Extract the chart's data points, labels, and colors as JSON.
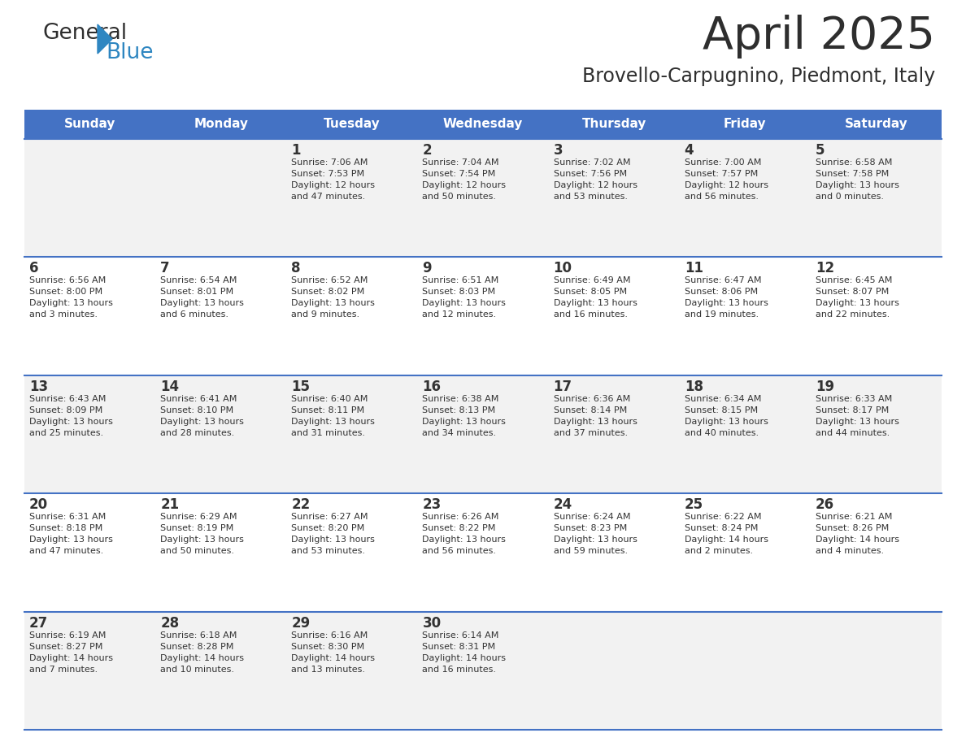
{
  "title": "April 2025",
  "subtitle": "Brovello-Carpugnino, Piedmont, Italy",
  "header_color": "#4472C4",
  "header_text_color": "#FFFFFF",
  "cell_bg_even": "#F2F2F2",
  "cell_bg_odd": "#FFFFFF",
  "day_headers": [
    "Sunday",
    "Monday",
    "Tuesday",
    "Wednesday",
    "Thursday",
    "Friday",
    "Saturday"
  ],
  "title_color": "#2E2E2E",
  "subtitle_color": "#2E2E2E",
  "divider_color": "#4472C4",
  "text_color": "#333333",
  "calendar": [
    [
      {
        "day": "",
        "info": ""
      },
      {
        "day": "",
        "info": ""
      },
      {
        "day": "1",
        "info": "Sunrise: 7:06 AM\nSunset: 7:53 PM\nDaylight: 12 hours\nand 47 minutes."
      },
      {
        "day": "2",
        "info": "Sunrise: 7:04 AM\nSunset: 7:54 PM\nDaylight: 12 hours\nand 50 minutes."
      },
      {
        "day": "3",
        "info": "Sunrise: 7:02 AM\nSunset: 7:56 PM\nDaylight: 12 hours\nand 53 minutes."
      },
      {
        "day": "4",
        "info": "Sunrise: 7:00 AM\nSunset: 7:57 PM\nDaylight: 12 hours\nand 56 minutes."
      },
      {
        "day": "5",
        "info": "Sunrise: 6:58 AM\nSunset: 7:58 PM\nDaylight: 13 hours\nand 0 minutes."
      }
    ],
    [
      {
        "day": "6",
        "info": "Sunrise: 6:56 AM\nSunset: 8:00 PM\nDaylight: 13 hours\nand 3 minutes."
      },
      {
        "day": "7",
        "info": "Sunrise: 6:54 AM\nSunset: 8:01 PM\nDaylight: 13 hours\nand 6 minutes."
      },
      {
        "day": "8",
        "info": "Sunrise: 6:52 AM\nSunset: 8:02 PM\nDaylight: 13 hours\nand 9 minutes."
      },
      {
        "day": "9",
        "info": "Sunrise: 6:51 AM\nSunset: 8:03 PM\nDaylight: 13 hours\nand 12 minutes."
      },
      {
        "day": "10",
        "info": "Sunrise: 6:49 AM\nSunset: 8:05 PM\nDaylight: 13 hours\nand 16 minutes."
      },
      {
        "day": "11",
        "info": "Sunrise: 6:47 AM\nSunset: 8:06 PM\nDaylight: 13 hours\nand 19 minutes."
      },
      {
        "day": "12",
        "info": "Sunrise: 6:45 AM\nSunset: 8:07 PM\nDaylight: 13 hours\nand 22 minutes."
      }
    ],
    [
      {
        "day": "13",
        "info": "Sunrise: 6:43 AM\nSunset: 8:09 PM\nDaylight: 13 hours\nand 25 minutes."
      },
      {
        "day": "14",
        "info": "Sunrise: 6:41 AM\nSunset: 8:10 PM\nDaylight: 13 hours\nand 28 minutes."
      },
      {
        "day": "15",
        "info": "Sunrise: 6:40 AM\nSunset: 8:11 PM\nDaylight: 13 hours\nand 31 minutes."
      },
      {
        "day": "16",
        "info": "Sunrise: 6:38 AM\nSunset: 8:13 PM\nDaylight: 13 hours\nand 34 minutes."
      },
      {
        "day": "17",
        "info": "Sunrise: 6:36 AM\nSunset: 8:14 PM\nDaylight: 13 hours\nand 37 minutes."
      },
      {
        "day": "18",
        "info": "Sunrise: 6:34 AM\nSunset: 8:15 PM\nDaylight: 13 hours\nand 40 minutes."
      },
      {
        "day": "19",
        "info": "Sunrise: 6:33 AM\nSunset: 8:17 PM\nDaylight: 13 hours\nand 44 minutes."
      }
    ],
    [
      {
        "day": "20",
        "info": "Sunrise: 6:31 AM\nSunset: 8:18 PM\nDaylight: 13 hours\nand 47 minutes."
      },
      {
        "day": "21",
        "info": "Sunrise: 6:29 AM\nSunset: 8:19 PM\nDaylight: 13 hours\nand 50 minutes."
      },
      {
        "day": "22",
        "info": "Sunrise: 6:27 AM\nSunset: 8:20 PM\nDaylight: 13 hours\nand 53 minutes."
      },
      {
        "day": "23",
        "info": "Sunrise: 6:26 AM\nSunset: 8:22 PM\nDaylight: 13 hours\nand 56 minutes."
      },
      {
        "day": "24",
        "info": "Sunrise: 6:24 AM\nSunset: 8:23 PM\nDaylight: 13 hours\nand 59 minutes."
      },
      {
        "day": "25",
        "info": "Sunrise: 6:22 AM\nSunset: 8:24 PM\nDaylight: 14 hours\nand 2 minutes."
      },
      {
        "day": "26",
        "info": "Sunrise: 6:21 AM\nSunset: 8:26 PM\nDaylight: 14 hours\nand 4 minutes."
      }
    ],
    [
      {
        "day": "27",
        "info": "Sunrise: 6:19 AM\nSunset: 8:27 PM\nDaylight: 14 hours\nand 7 minutes."
      },
      {
        "day": "28",
        "info": "Sunrise: 6:18 AM\nSunset: 8:28 PM\nDaylight: 14 hours\nand 10 minutes."
      },
      {
        "day": "29",
        "info": "Sunrise: 6:16 AM\nSunset: 8:30 PM\nDaylight: 14 hours\nand 13 minutes."
      },
      {
        "day": "30",
        "info": "Sunrise: 6:14 AM\nSunset: 8:31 PM\nDaylight: 14 hours\nand 16 minutes."
      },
      {
        "day": "",
        "info": ""
      },
      {
        "day": "",
        "info": ""
      },
      {
        "day": "",
        "info": ""
      }
    ]
  ],
  "logo_general_color": "#2E2E2E",
  "logo_blue_color": "#2E86C1",
  "fig_width": 11.88,
  "fig_height": 9.18,
  "dpi": 100
}
